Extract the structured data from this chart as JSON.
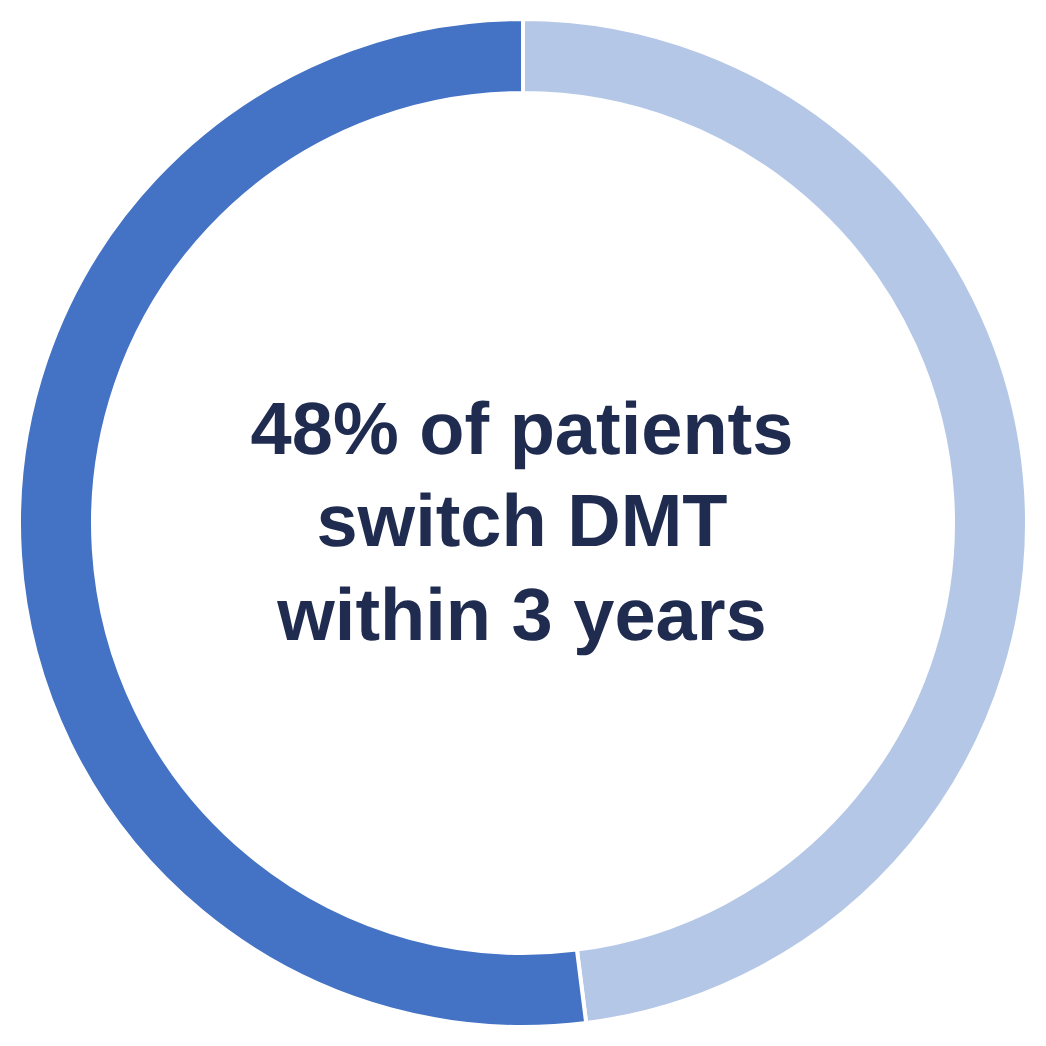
{
  "chart_data": {
    "type": "donut",
    "categories": [
      null,
      null
    ],
    "values": [
      48,
      52
    ],
    "colors": [
      "#b4c7e7",
      "#4472c4"
    ],
    "annotations": [
      "48% of patients switch DMT within 3 years"
    ]
  }
}
